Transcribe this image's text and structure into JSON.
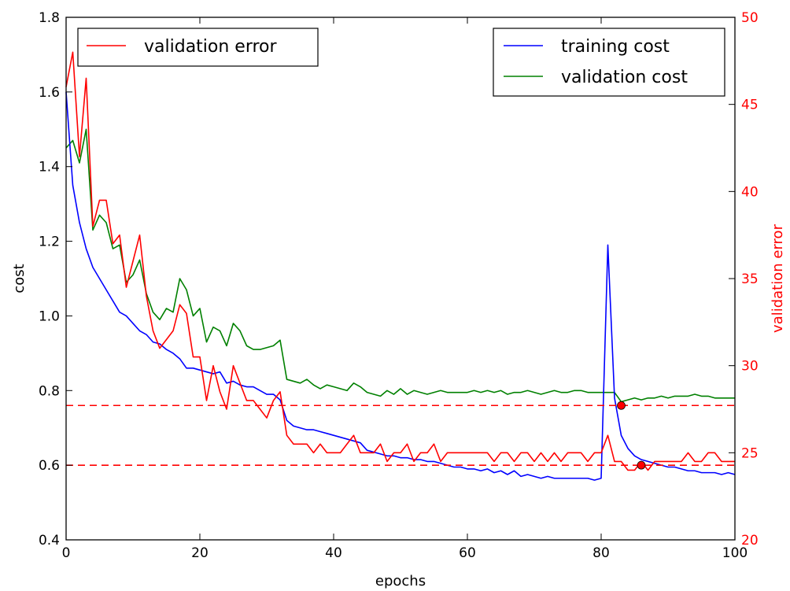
{
  "chart_data": {
    "type": "line",
    "xlabel": "epochs",
    "ylabel": "cost",
    "ylabel_right": "validation error",
    "xlim": [
      0,
      100
    ],
    "ylim": [
      0.4,
      1.8
    ],
    "ylim_right": [
      20,
      50
    ],
    "xticks": [
      "0",
      "20",
      "40",
      "60",
      "80",
      "100"
    ],
    "yticks": [
      "0.4",
      "0.6",
      "0.8",
      "1.0",
      "1.2",
      "1.4",
      "1.6",
      "1.8"
    ],
    "yticks_right": [
      "20",
      "25",
      "30",
      "35",
      "40",
      "45",
      "50"
    ],
    "grid": false,
    "legends": {
      "left": {
        "placement": "upper-left",
        "entries": [
          "validation error"
        ]
      },
      "right": {
        "placement": "upper-right",
        "entries": [
          "training cost",
          "validation cost"
        ]
      }
    },
    "colors": {
      "training": "#0000ff",
      "validation_cost": "#008000",
      "validation_error": "#ff0000"
    },
    "series": [
      {
        "name": "training cost",
        "axis": "left",
        "x": [
          0,
          1,
          2,
          3,
          4,
          5,
          6,
          7,
          8,
          9,
          10,
          11,
          12,
          13,
          14,
          15,
          16,
          17,
          18,
          19,
          20,
          21,
          22,
          23,
          24,
          25,
          26,
          27,
          28,
          29,
          30,
          31,
          32,
          33,
          34,
          35,
          36,
          37,
          38,
          39,
          40,
          41,
          42,
          43,
          44,
          45,
          46,
          47,
          48,
          49,
          50,
          51,
          52,
          53,
          54,
          55,
          56,
          57,
          58,
          59,
          60,
          61,
          62,
          63,
          64,
          65,
          66,
          67,
          68,
          69,
          70,
          71,
          72,
          73,
          74,
          75,
          76,
          77,
          78,
          79,
          80,
          81,
          82,
          83,
          84,
          85,
          86,
          87,
          88,
          89,
          90,
          91,
          92,
          93,
          94,
          95,
          96,
          97,
          98,
          99,
          100
        ],
        "y": [
          1.6,
          1.35,
          1.25,
          1.18,
          1.13,
          1.1,
          1.07,
          1.04,
          1.01,
          1.0,
          0.98,
          0.96,
          0.95,
          0.93,
          0.925,
          0.91,
          0.9,
          0.885,
          0.86,
          0.86,
          0.855,
          0.85,
          0.845,
          0.85,
          0.82,
          0.825,
          0.815,
          0.81,
          0.81,
          0.8,
          0.79,
          0.79,
          0.775,
          0.72,
          0.705,
          0.7,
          0.695,
          0.695,
          0.69,
          0.685,
          0.68,
          0.675,
          0.67,
          0.665,
          0.66,
          0.64,
          0.635,
          0.63,
          0.625,
          0.625,
          0.62,
          0.62,
          0.615,
          0.615,
          0.61,
          0.61,
          0.605,
          0.6,
          0.595,
          0.595,
          0.59,
          0.59,
          0.585,
          0.59,
          0.58,
          0.585,
          0.575,
          0.585,
          0.57,
          0.575,
          0.57,
          0.565,
          0.57,
          0.565,
          0.565,
          0.565,
          0.565,
          0.565,
          0.565,
          0.56,
          0.565,
          1.19,
          0.78,
          0.68,
          0.645,
          0.625,
          0.615,
          0.61,
          0.605,
          0.6,
          0.595,
          0.595,
          0.59,
          0.585,
          0.585,
          0.58,
          0.58,
          0.58,
          0.575,
          0.58,
          0.575
        ]
      },
      {
        "name": "validation cost",
        "axis": "left",
        "x": [
          0,
          1,
          2,
          3,
          4,
          5,
          6,
          7,
          8,
          9,
          10,
          11,
          12,
          13,
          14,
          15,
          16,
          17,
          18,
          19,
          20,
          21,
          22,
          23,
          24,
          25,
          26,
          27,
          28,
          29,
          30,
          31,
          32,
          33,
          34,
          35,
          36,
          37,
          38,
          39,
          40,
          41,
          42,
          43,
          44,
          45,
          46,
          47,
          48,
          49,
          50,
          51,
          52,
          53,
          54,
          55,
          56,
          57,
          58,
          59,
          60,
          61,
          62,
          63,
          64,
          65,
          66,
          67,
          68,
          69,
          70,
          71,
          72,
          73,
          74,
          75,
          76,
          77,
          78,
          79,
          80,
          81,
          82,
          83,
          84,
          85,
          86,
          87,
          88,
          89,
          90,
          91,
          92,
          93,
          94,
          95,
          96,
          97,
          98,
          99,
          100
        ],
        "y": [
          1.45,
          1.47,
          1.41,
          1.5,
          1.23,
          1.27,
          1.25,
          1.18,
          1.19,
          1.09,
          1.11,
          1.15,
          1.06,
          1.01,
          0.99,
          1.02,
          1.01,
          1.1,
          1.07,
          1.0,
          1.02,
          0.93,
          0.97,
          0.96,
          0.92,
          0.98,
          0.96,
          0.92,
          0.91,
          0.91,
          0.915,
          0.92,
          0.935,
          0.83,
          0.825,
          0.82,
          0.83,
          0.815,
          0.805,
          0.815,
          0.81,
          0.805,
          0.8,
          0.82,
          0.81,
          0.795,
          0.79,
          0.785,
          0.8,
          0.79,
          0.805,
          0.79,
          0.8,
          0.795,
          0.79,
          0.795,
          0.8,
          0.795,
          0.795,
          0.795,
          0.795,
          0.8,
          0.795,
          0.8,
          0.795,
          0.8,
          0.79,
          0.795,
          0.795,
          0.8,
          0.795,
          0.79,
          0.795,
          0.8,
          0.795,
          0.795,
          0.8,
          0.8,
          0.795,
          0.795,
          0.795,
          0.795,
          0.795,
          0.77,
          0.775,
          0.78,
          0.775,
          0.78,
          0.78,
          0.785,
          0.78,
          0.785,
          0.785,
          0.785,
          0.79,
          0.785,
          0.785,
          0.78,
          0.78,
          0.78,
          0.78
        ]
      },
      {
        "name": "validation error",
        "axis": "right",
        "x": [
          0,
          1,
          2,
          3,
          4,
          5,
          6,
          7,
          8,
          9,
          10,
          11,
          12,
          13,
          14,
          15,
          16,
          17,
          18,
          19,
          20,
          21,
          22,
          23,
          24,
          25,
          26,
          27,
          28,
          29,
          30,
          31,
          32,
          33,
          34,
          35,
          36,
          37,
          38,
          39,
          40,
          41,
          42,
          43,
          44,
          45,
          46,
          47,
          48,
          49,
          50,
          51,
          52,
          53,
          54,
          55,
          56,
          57,
          58,
          59,
          60,
          61,
          62,
          63,
          64,
          65,
          66,
          67,
          68,
          69,
          70,
          71,
          72,
          73,
          74,
          75,
          76,
          77,
          78,
          79,
          80,
          81,
          82,
          83,
          84,
          85,
          86,
          87,
          88,
          89,
          90,
          91,
          92,
          93,
          94,
          95,
          96,
          97,
          98,
          99,
          100
        ],
        "y": [
          46.0,
          48.0,
          42.0,
          46.5,
          38.0,
          39.5,
          39.5,
          37.0,
          37.5,
          34.5,
          36.0,
          37.5,
          34.0,
          32.0,
          31.0,
          31.5,
          32.0,
          33.5,
          33.0,
          30.5,
          30.5,
          28.0,
          30.0,
          28.5,
          27.5,
          30.0,
          29.0,
          28.0,
          28.0,
          27.5,
          27.0,
          28.0,
          28.5,
          26.0,
          25.5,
          25.5,
          25.5,
          25.0,
          25.5,
          25.0,
          25.0,
          25.0,
          25.5,
          26.0,
          25.0,
          25.0,
          25.0,
          25.5,
          24.5,
          25.0,
          25.0,
          25.5,
          24.5,
          25.0,
          25.0,
          25.5,
          24.5,
          25.0,
          25.0,
          25.0,
          25.0,
          25.0,
          25.0,
          25.0,
          24.5,
          25.0,
          25.0,
          24.5,
          25.0,
          25.0,
          24.5,
          25.0,
          24.5,
          25.0,
          24.5,
          25.0,
          25.0,
          25.0,
          24.5,
          25.0,
          25.0,
          26.0,
          24.5,
          24.5,
          24.0,
          24.0,
          24.5,
          24.0,
          24.5,
          24.5,
          24.5,
          24.5,
          24.5,
          25.0,
          24.5,
          24.5,
          25.0,
          25.0,
          24.5,
          24.5,
          24.5
        ]
      }
    ],
    "reference_lines": [
      {
        "axis": "left",
        "y": 0.76,
        "style": "dashed",
        "color": "#ff0000"
      },
      {
        "axis": "left",
        "y": 0.6,
        "style": "dashed",
        "color": "#ff0000"
      }
    ],
    "markers": [
      {
        "axis": "left",
        "x": 83,
        "y": 0.76,
        "color": "#ff0000"
      },
      {
        "axis": "left",
        "x": 86,
        "y": 0.6,
        "color": "#ff0000"
      }
    ]
  }
}
